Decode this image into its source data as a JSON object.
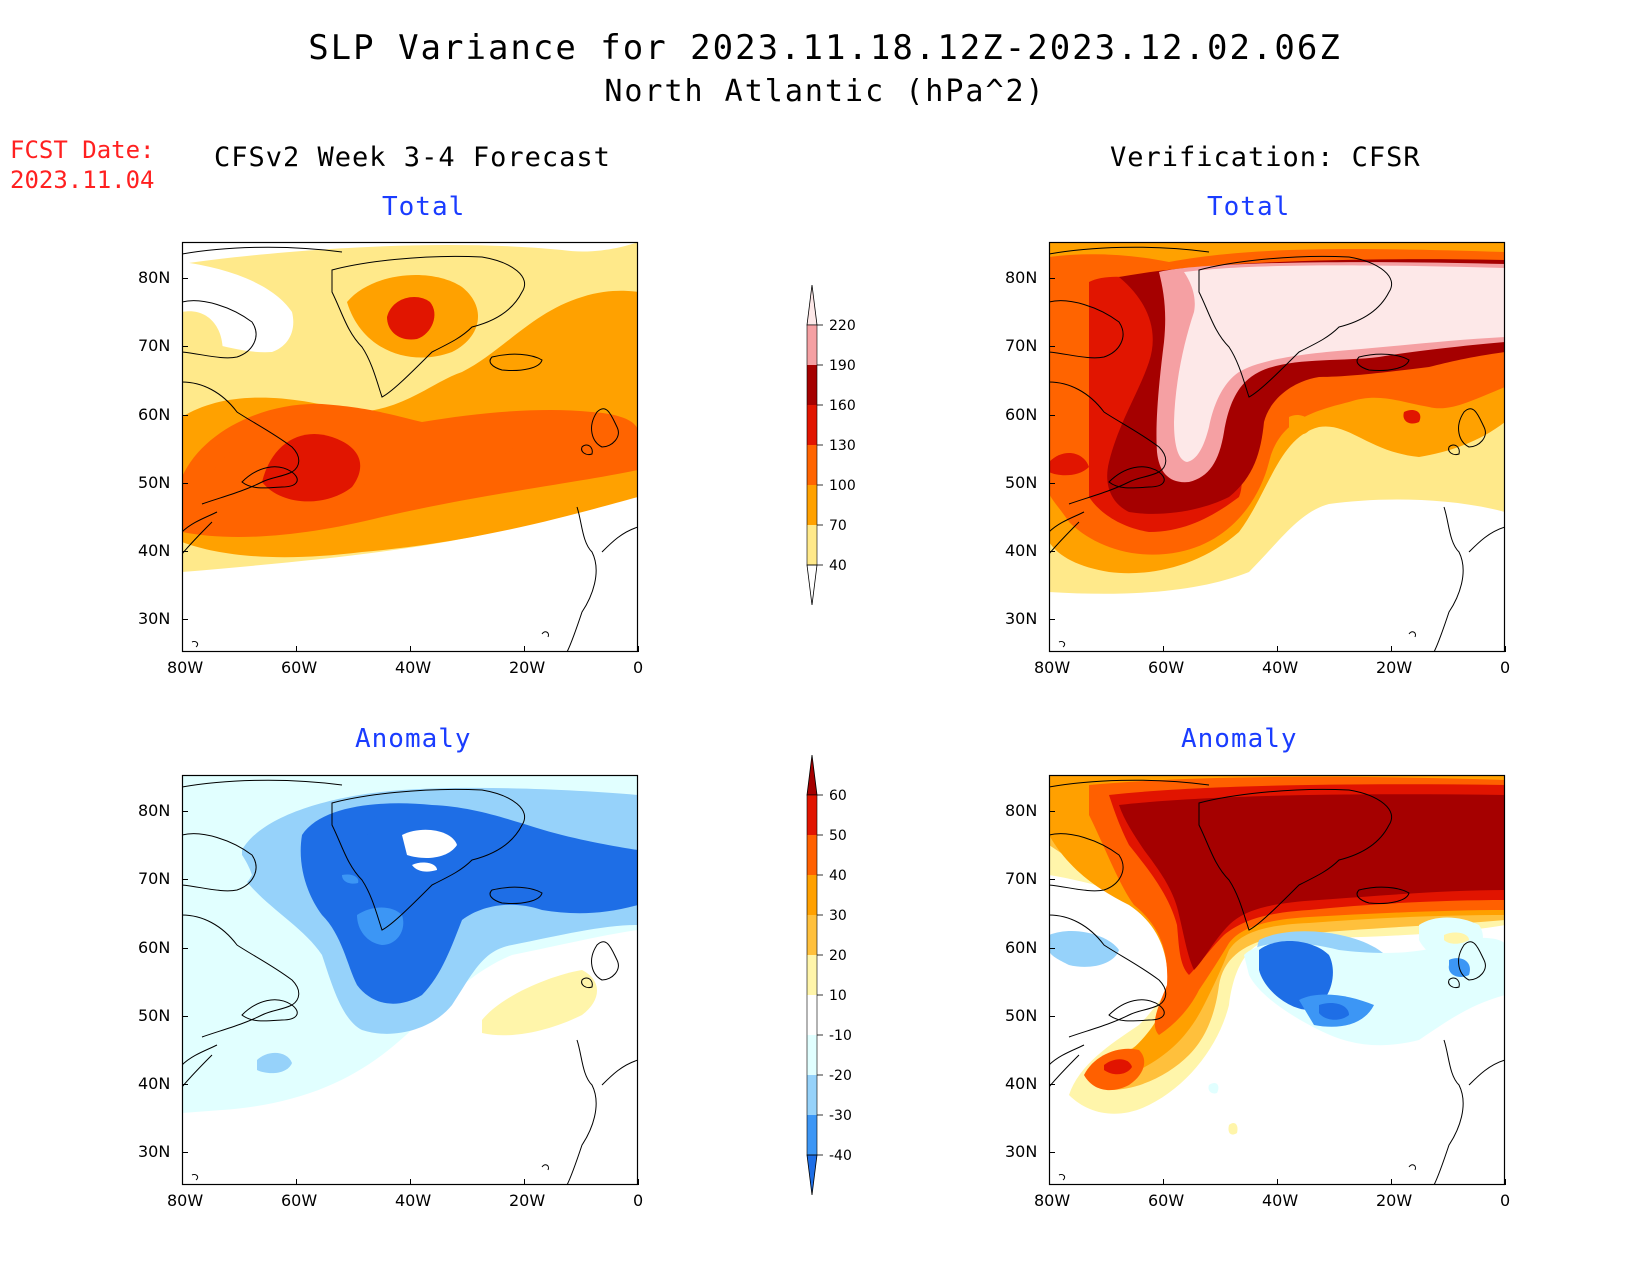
{
  "title": {
    "line1": "SLP Variance for 2023.11.18.12Z-2023.12.02.06Z",
    "line2": "North Atlantic (hPa^2)"
  },
  "fcst": {
    "line1": "FCST Date:",
    "line2": "2023.11.04"
  },
  "columns": {
    "left": "CFSv2 Week 3-4 Forecast",
    "right": "Verification: CFSR"
  },
  "panels": {
    "fc_total": "Total",
    "ver_total": "Total",
    "fc_anom": "Anomaly",
    "ver_anom": "Anomaly"
  },
  "axes": {
    "x_ticks": [
      "80W",
      "60W",
      "40W",
      "20W",
      "0"
    ],
    "y_ticks": [
      "80N",
      "70N",
      "60N",
      "50N",
      "40N",
      "30N"
    ]
  },
  "colorbars": {
    "total": {
      "levels": [
        "40",
        "70",
        "100",
        "130",
        "160",
        "190",
        "220"
      ],
      "colors": [
        "#ffe98a",
        "#ffa100",
        "#ff6400",
        "#e11500",
        "#a50000",
        "#f5a0a3",
        "#fde8e8"
      ]
    },
    "anomaly": {
      "levels": [
        "-40",
        "-30",
        "-20",
        "-10",
        "10",
        "20",
        "30",
        "40",
        "50",
        "60"
      ],
      "colors": [
        "#1e6ee6",
        "#3c96f5",
        "#96d2fa",
        "#e1ffff",
        "#ffffff",
        "#fff5aa",
        "#ffc03c",
        "#ffa000",
        "#ff6000",
        "#e11400",
        "#a50000"
      ]
    }
  },
  "colors": {
    "title_red": "#ff2020",
    "panel_blue": "#1a3cff"
  }
}
